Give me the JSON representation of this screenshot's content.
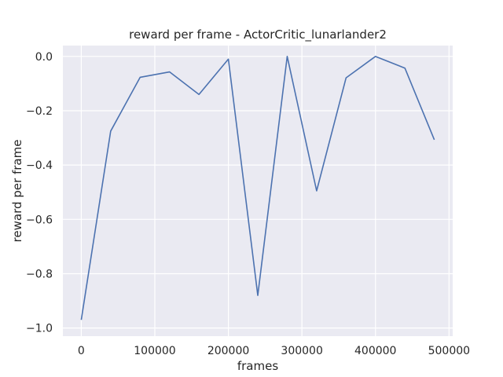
{
  "chart_data": {
    "type": "line",
    "title": "reward per frame - ActorCritic_lunarlander2",
    "xlabel": "frames",
    "ylabel": "reward per frame",
    "xlim": [
      -25000,
      505000
    ],
    "ylim": [
      -1.03,
      0.04
    ],
    "x_ticks": [
      0,
      100000,
      200000,
      300000,
      400000,
      500000
    ],
    "x_tick_labels": [
      "0",
      "100000",
      "200000",
      "300000",
      "400000",
      "500000"
    ],
    "y_ticks": [
      -1.0,
      -0.8,
      -0.6,
      -0.4,
      -0.2,
      0.0
    ],
    "y_tick_labels": [
      "−1.0",
      "−0.8",
      "−0.6",
      "−0.4",
      "−0.2",
      "0.0"
    ],
    "grid": true,
    "series": [
      {
        "color": "#4c72b0",
        "x": [
          0,
          40000,
          80000,
          120000,
          160000,
          200000,
          240000,
          280000,
          320000,
          360000,
          400000,
          440000,
          480000
        ],
        "y": [
          -0.97,
          -0.275,
          -0.077,
          -0.057,
          -0.14,
          -0.01,
          -0.88,
          0.0,
          -0.495,
          -0.079,
          0.0,
          -0.043,
          -0.307
        ]
      }
    ],
    "background_color": "#eaeaf2",
    "grid_color": "#ffffff"
  }
}
